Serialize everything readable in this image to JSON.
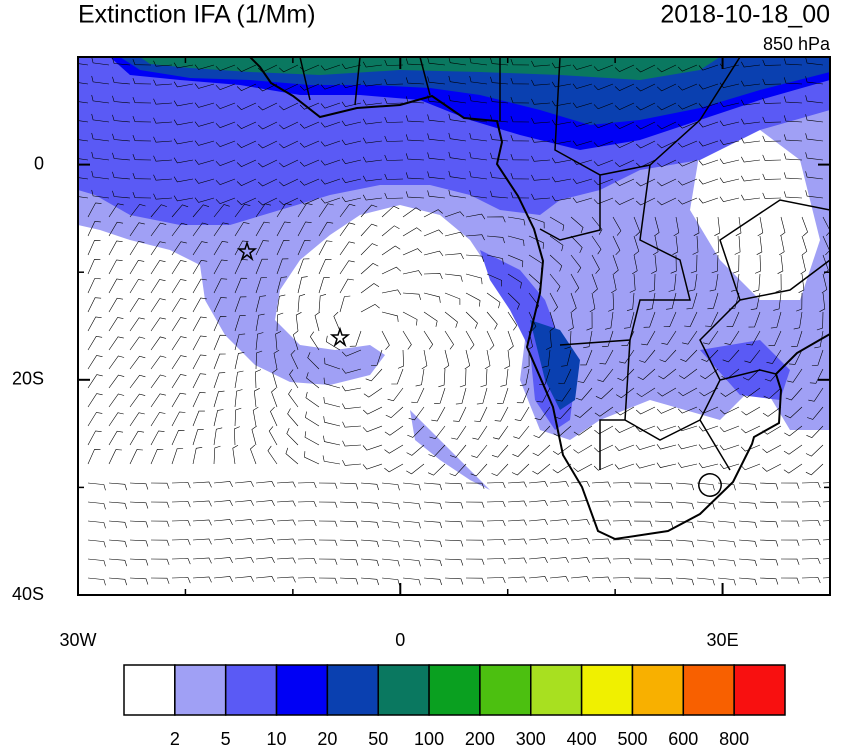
{
  "chart_data": {
    "type": "map",
    "title": "Extinction IFA (1/Mm)",
    "date": "2018-10-18_00",
    "level": "850 hPa",
    "xlim": [
      -30,
      40
    ],
    "ylim": [
      -40,
      10
    ],
    "xticks": [
      {
        "value": -30,
        "label": "30W"
      },
      0,
      {
        "value": 30,
        "label": "30E"
      }
    ],
    "yticks": [
      0,
      {
        "value": -20,
        "label": "20S"
      },
      {
        "value": -40,
        "label": "40S"
      }
    ],
    "xminorticks": [
      -20,
      -10,
      10,
      20,
      40
    ],
    "yminorticks": [
      -30,
      -10,
      10
    ],
    "colorbar": {
      "levels": [
        2,
        5,
        10,
        20,
        50,
        100,
        200,
        300,
        400,
        500,
        600,
        800
      ],
      "colors": [
        "#ffffff",
        "#a0a0f5",
        "#5a5af5",
        "#0000f5",
        "#0a40b0",
        "#0a7860",
        "#0aa020",
        "#4cc010",
        "#a8e020",
        "#f0f000",
        "#f8b000",
        "#f86000",
        "#f81010"
      ]
    }
  }
}
